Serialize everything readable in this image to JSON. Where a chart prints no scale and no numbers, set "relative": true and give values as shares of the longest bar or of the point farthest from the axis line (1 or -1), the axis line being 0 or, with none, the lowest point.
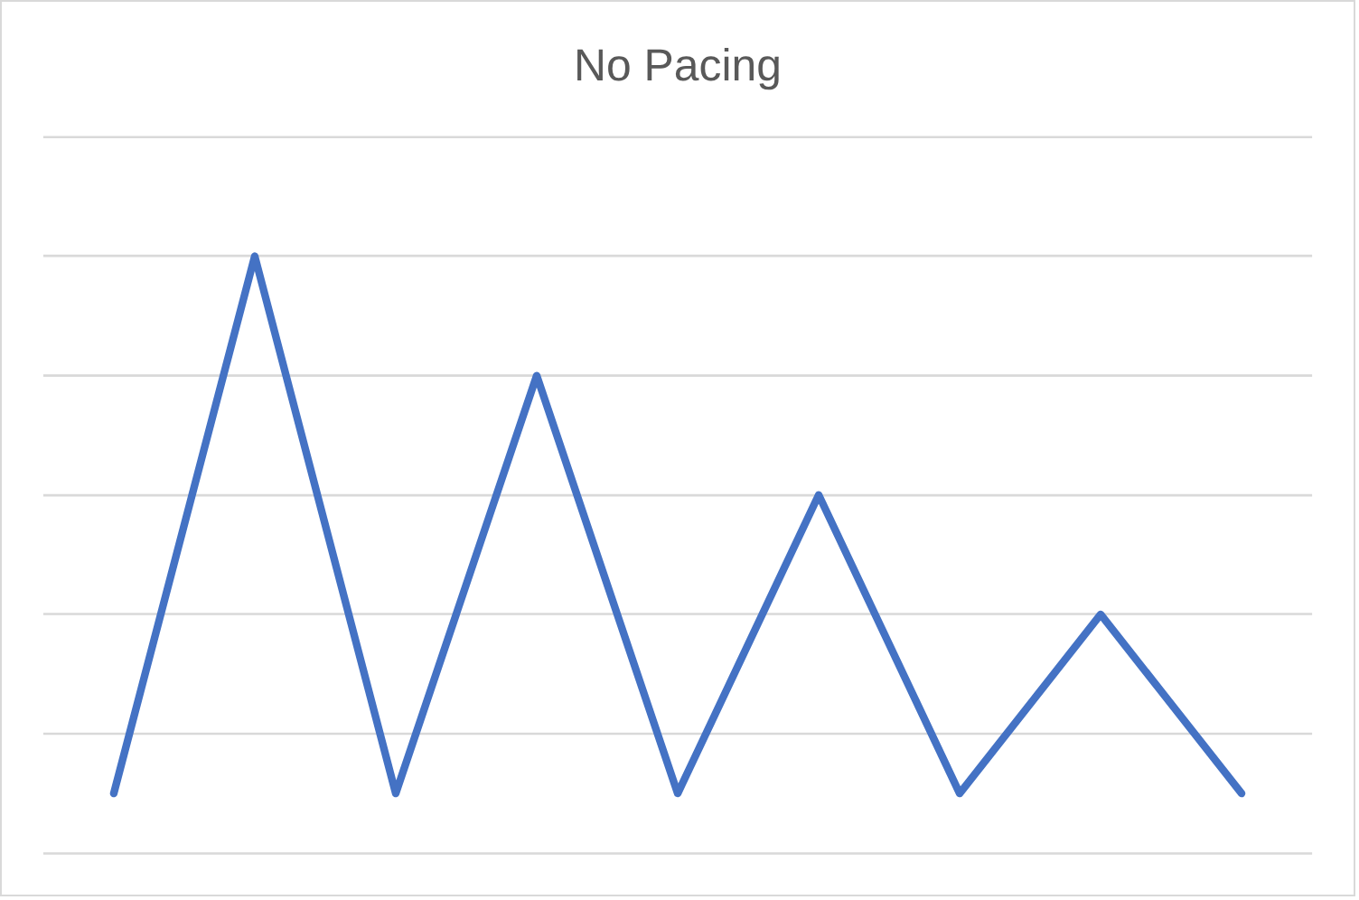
{
  "chart_data": {
    "type": "line",
    "title": "No Pacing",
    "relative": true,
    "categories": [
      null,
      null,
      null,
      null,
      null,
      null,
      null,
      null,
      null
    ],
    "series": [
      {
        "color": "#4472c4",
        "values": [
          0.1,
          1,
          0.1,
          0.8,
          0.1,
          0.6,
          0.1,
          0.4,
          0.1
        ]
      }
    ],
    "grid": "y",
    "legend": false,
    "marker": "none",
    "line_style": "solid",
    "tick_labels": false
  }
}
